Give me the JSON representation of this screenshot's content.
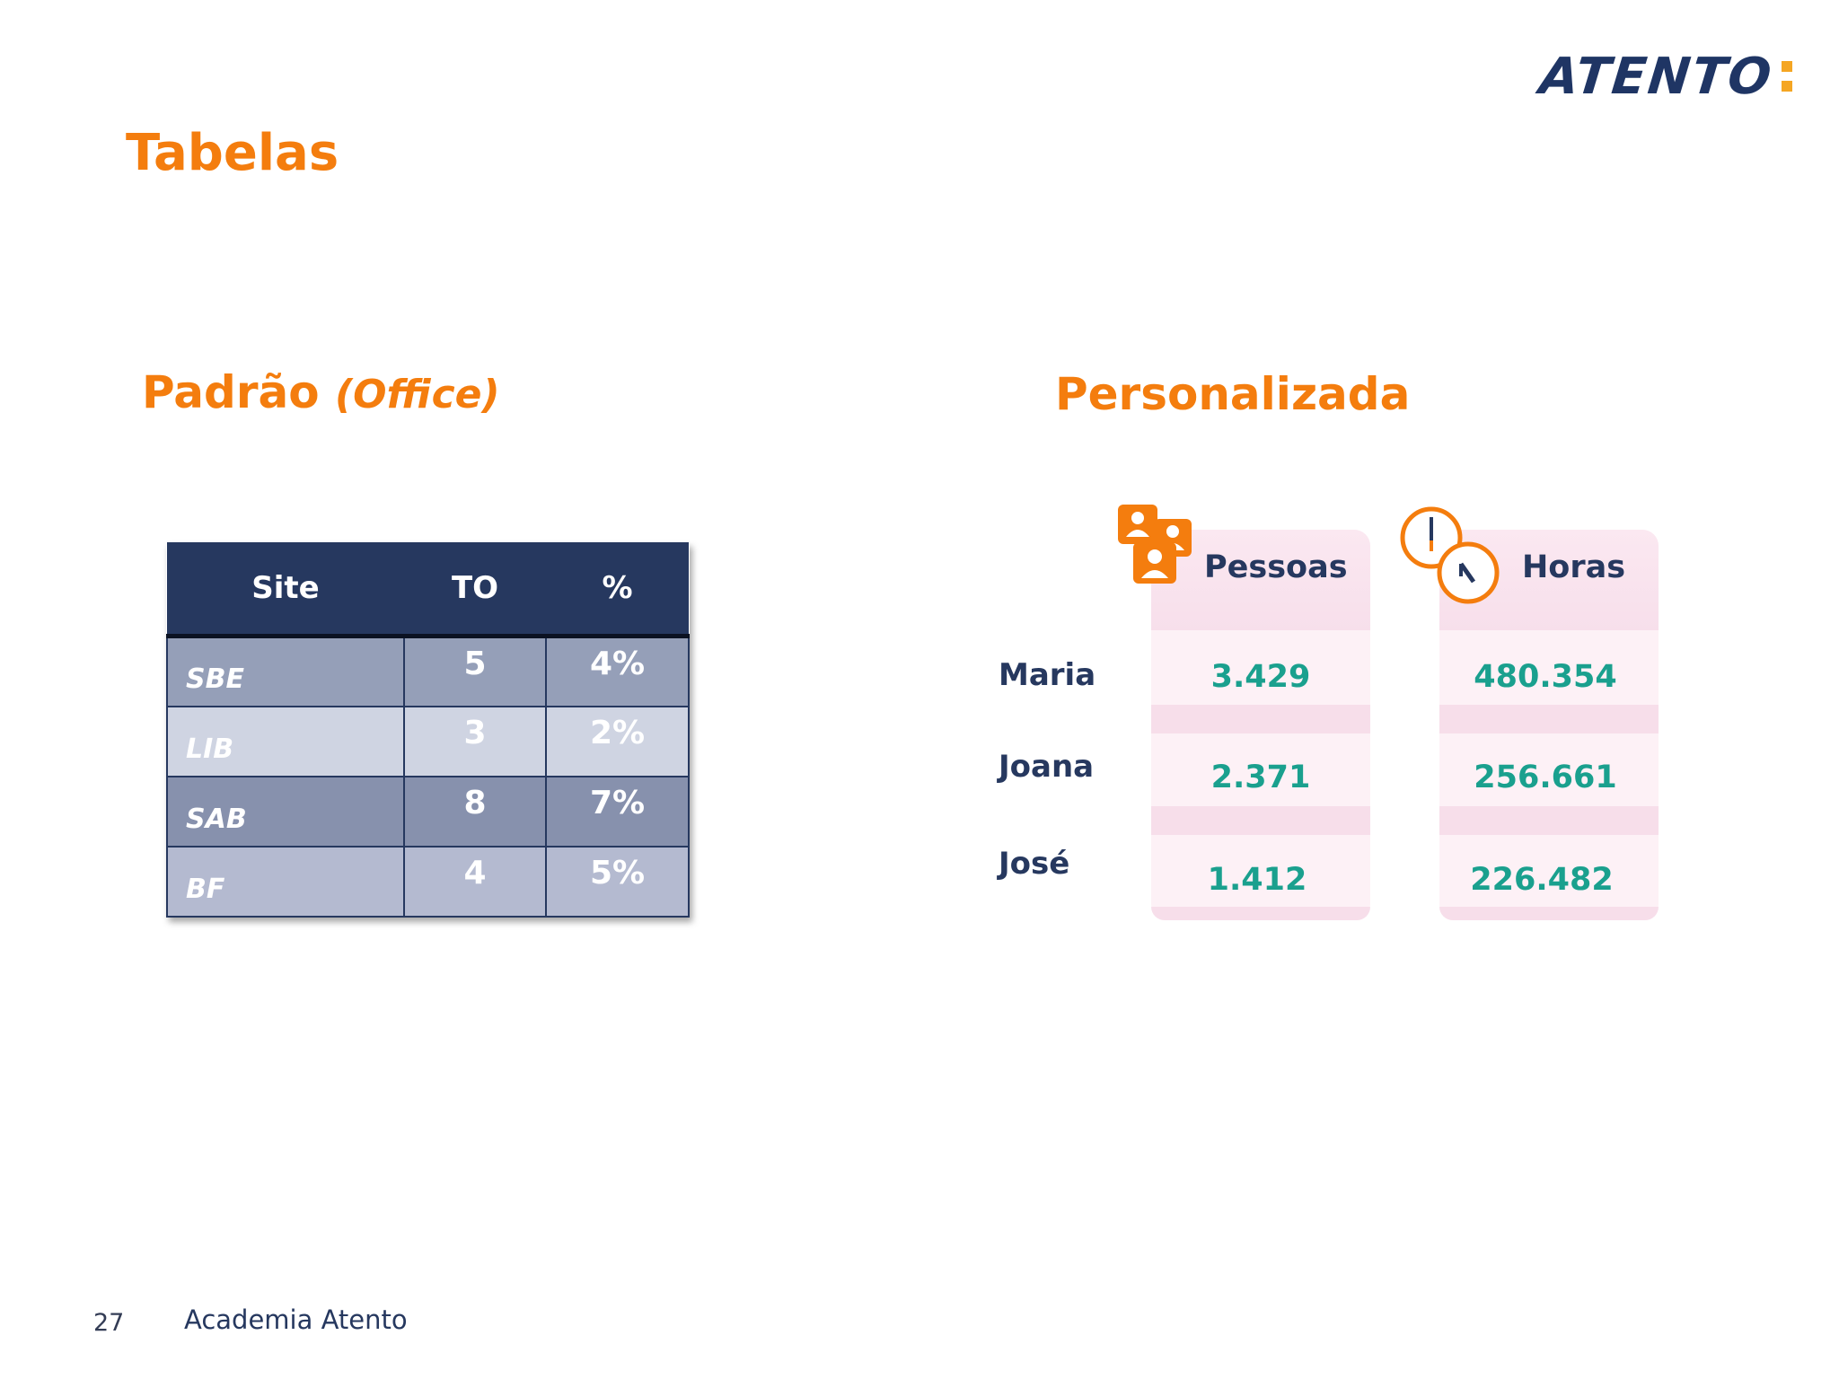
{
  "brand": {
    "logo_text": "ATENTO",
    "accent": "#f47d0e",
    "navy": "#26385f",
    "teal": "#1aa08e"
  },
  "title": "Tabelas",
  "left_section": {
    "heading": "Padrão",
    "heading_paren": "(Office)",
    "table": {
      "headers": [
        "Site",
        "TO",
        "%"
      ],
      "rows": [
        {
          "site": "SBE",
          "to": "5",
          "pct": "4%"
        },
        {
          "site": "LIB",
          "to": "3",
          "pct": "2%"
        },
        {
          "site": "SAB",
          "to": "8",
          "pct": "7%"
        },
        {
          "site": "BF",
          "to": "4",
          "pct": "5%"
        }
      ]
    }
  },
  "right_section": {
    "heading": "Personalizada",
    "columns": [
      {
        "label": "Pessoas",
        "icon": "people-icon"
      },
      {
        "label": "Horas",
        "icon": "clock-icon"
      }
    ],
    "rows": [
      {
        "name": "Maria",
        "pessoas": "3.429",
        "horas": "480.354"
      },
      {
        "name": "Joana",
        "pessoas": "2.371",
        "horas": "256.661"
      },
      {
        "name": "José",
        "pessoas": "1.412",
        "horas": "226.482"
      }
    ]
  },
  "footer": {
    "page_number": "27",
    "text": "Academia Atento"
  }
}
